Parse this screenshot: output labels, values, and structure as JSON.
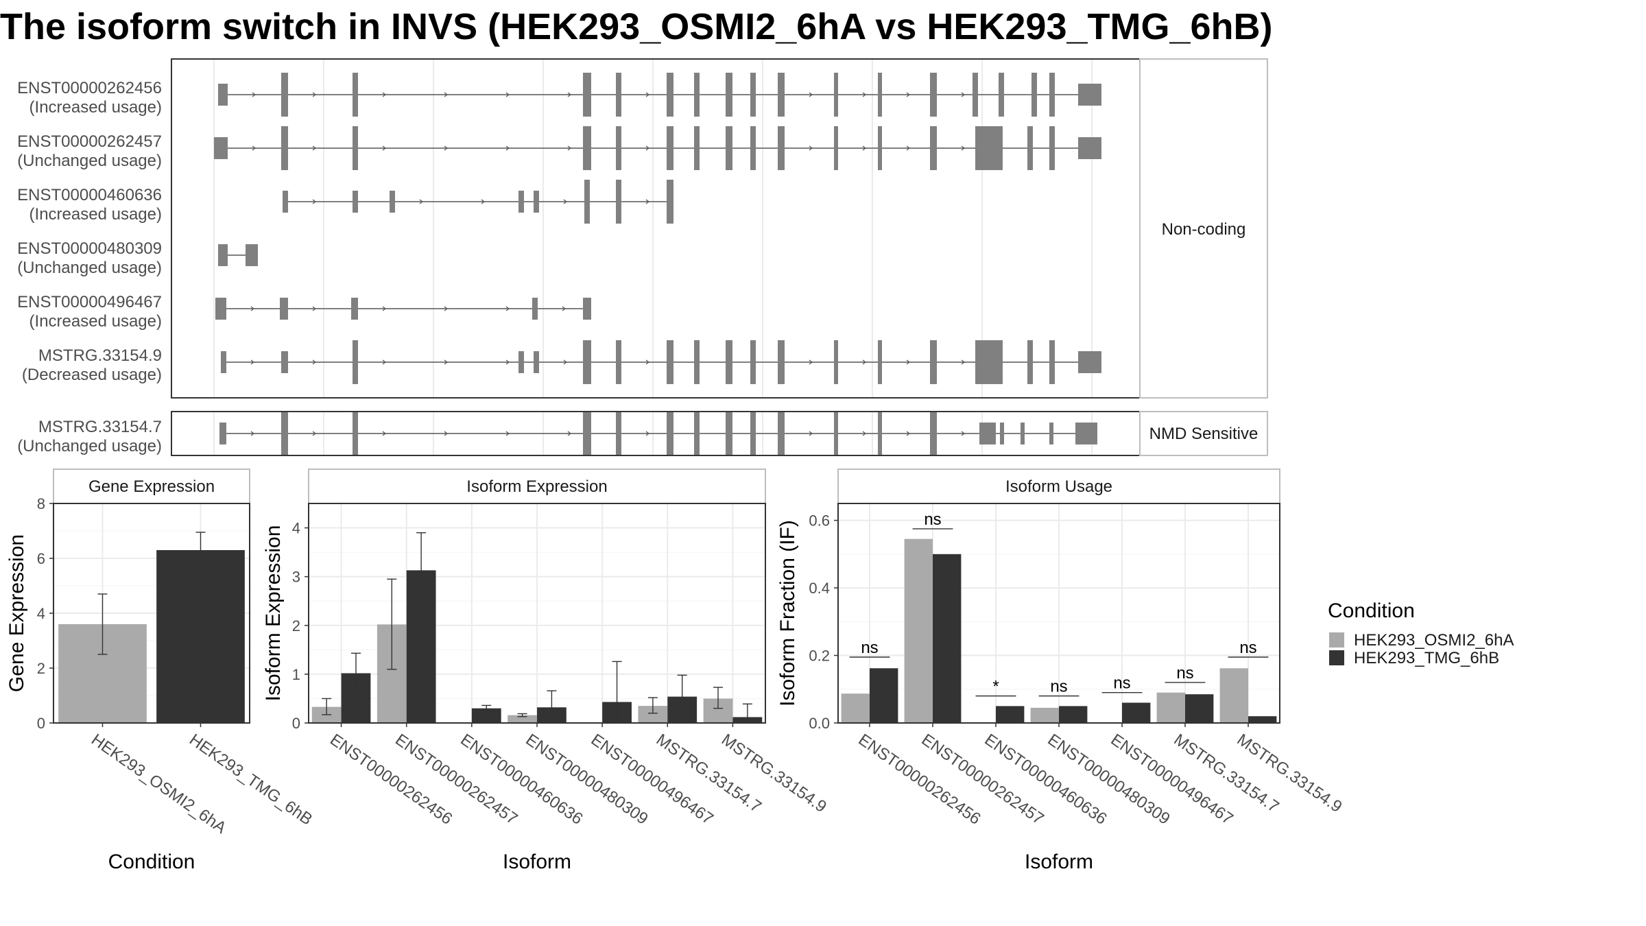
{
  "title": "The isoform switch in INVS (HEK293_OSMI2_6hA vs HEK293_TMG_6hB)",
  "chart_data": [
    {
      "type": "gene-structure",
      "panels": [
        {
          "label": "Non-coding",
          "transcripts": [
            {
              "id": "ENST00000262456",
              "usage": "(Increased usage)"
            },
            {
              "id": "ENST00000262457",
              "usage": "(Unchanged usage)"
            },
            {
              "id": "ENST00000460636",
              "usage": "(Increased usage)"
            },
            {
              "id": "ENST00000480309",
              "usage": "(Unchanged usage)"
            },
            {
              "id": "ENST00000496467",
              "usage": "(Increased usage)"
            },
            {
              "id": "MSTRG.33154.9",
              "usage": "(Decreased usage)"
            }
          ]
        },
        {
          "label": "NMD Sensitive",
          "transcripts": [
            {
              "id": "MSTRG.33154.7",
              "usage": "(Unchanged usage)"
            }
          ]
        }
      ]
    },
    {
      "type": "bar",
      "title": "Gene Expression",
      "xlabel": "Condition",
      "ylabel": "Gene Expression",
      "ylim": [
        0,
        8
      ],
      "yticks": [
        0,
        2,
        4,
        6,
        8
      ],
      "categories": [
        "HEK293_OSMI2_6hA",
        "HEK293_TMG_6hB"
      ],
      "values": [
        3.6,
        6.3
      ],
      "error_low": [
        2.5,
        5.7
      ],
      "error_high": [
        4.7,
        6.95
      ]
    },
    {
      "type": "bar",
      "title": "Isoform Expression",
      "xlabel": "Isoform",
      "ylabel": "Isoform Expression",
      "ylim": [
        0,
        4.5
      ],
      "yticks": [
        0,
        1,
        2,
        3,
        4
      ],
      "categories": [
        "ENST00000262456",
        "ENST00000262457",
        "ENST00000460636",
        "ENST00000480309",
        "ENST00000496467",
        "MSTRG.33154.7",
        "MSTRG.33154.9"
      ],
      "series": [
        {
          "name": "HEK293_OSMI2_6hA",
          "values": [
            0.33,
            2.02,
            0.0,
            0.16,
            0.0,
            0.35,
            0.5
          ],
          "error_low": [
            0.17,
            1.1,
            0.0,
            0.13,
            0.0,
            0.2,
            0.3
          ],
          "error_high": [
            0.5,
            2.95,
            0.0,
            0.19,
            0.0,
            0.52,
            0.73
          ]
        },
        {
          "name": "HEK293_TMG_6hB",
          "values": [
            1.02,
            3.13,
            0.3,
            0.32,
            0.43,
            0.54,
            0.12
          ],
          "error_low": [
            0.6,
            2.35,
            0.24,
            0.0,
            0.0,
            0.1,
            0.0
          ],
          "error_high": [
            1.43,
            3.9,
            0.36,
            0.66,
            1.26,
            0.98,
            0.39
          ]
        }
      ]
    },
    {
      "type": "bar",
      "title": "Isoform Usage",
      "xlabel": "Isoform",
      "ylabel": "Isoform Fraction (IF)",
      "ylim": [
        0,
        0.65
      ],
      "yticks": [
        0.0,
        0.2,
        0.4,
        0.6
      ],
      "ytick_labels": [
        "0.0",
        "0.2",
        "0.4",
        "0.6"
      ],
      "categories": [
        "ENST00000262456",
        "ENST00000262457",
        "ENST00000460636",
        "ENST00000480309",
        "ENST00000496467",
        "MSTRG.33154.7",
        "MSTRG.33154.9"
      ],
      "series": [
        {
          "name": "HEK293_OSMI2_6hA",
          "values": [
            0.087,
            0.545,
            0.0,
            0.045,
            0.0,
            0.09,
            0.162
          ]
        },
        {
          "name": "HEK293_TMG_6hB",
          "values": [
            0.162,
            0.5,
            0.05,
            0.05,
            0.06,
            0.085,
            0.02
          ]
        }
      ],
      "significance": [
        "ns",
        "ns",
        "*",
        "ns",
        "ns",
        "ns",
        "ns"
      ],
      "significance_y": [
        0.195,
        0.575,
        0.08,
        0.08,
        0.09,
        0.12,
        0.195
      ]
    }
  ],
  "legend": {
    "title": "Condition",
    "entries": [
      {
        "label": "HEK293_OSMI2_6hA",
        "color": "#aaaaaa"
      },
      {
        "label": "HEK293_TMG_6hB",
        "color": "#333333"
      }
    ]
  },
  "colors": {
    "exon": "#808080",
    "intron": "#555555",
    "condition_a": "#aaaaaa",
    "condition_b": "#333333"
  }
}
